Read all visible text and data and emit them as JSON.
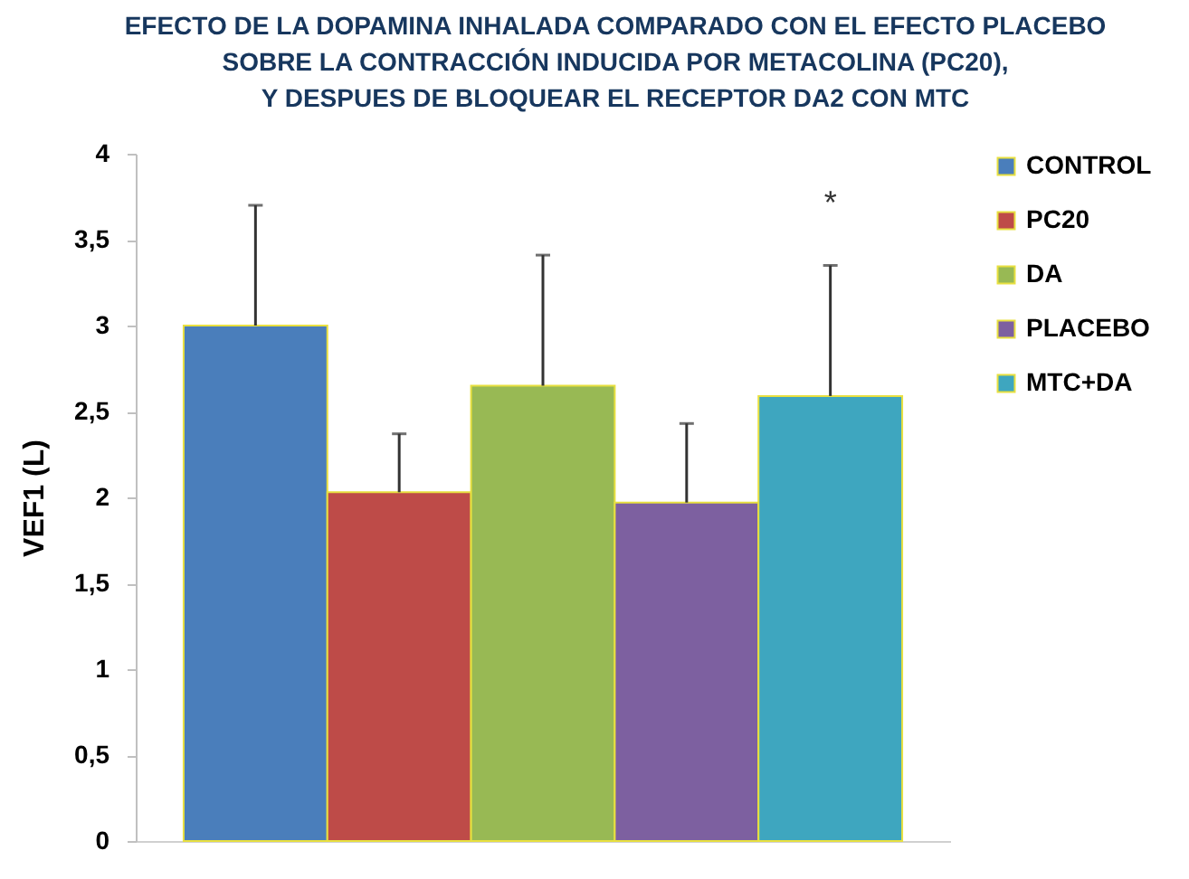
{
  "chart_data": {
    "type": "bar",
    "title": "EFECTO  DE LA DOPAMINA INHALADA COMPARADO CON EL EFECTO  PLACEBO\nSOBRE LA CONTRACCIÓN INDUCIDA POR METACOLINA  (PC20),\nY  DESPUES DE BLOQUEAR EL RECEPTOR DA2 CON MTC",
    "ylabel": "VEF1 (L)",
    "categories": [
      null
    ],
    "series": [
      {
        "name": "CONTROL",
        "color": "#4a7ebb",
        "values": [
          3.0
        ],
        "errors": [
          [
            3.0,
            3.7
          ]
        ]
      },
      {
        "name": "PC20",
        "color": "#be4b48",
        "values": [
          2.03
        ],
        "errors": [
          [
            2.03,
            2.37
          ]
        ]
      },
      {
        "name": "DA",
        "color": "#98b954",
        "values": [
          2.65
        ],
        "errors": [
          [
            2.65,
            3.41
          ]
        ]
      },
      {
        "name": "PLACEBO",
        "color": "#7d60a0",
        "values": [
          1.97
        ],
        "errors": [
          [
            1.97,
            2.43
          ]
        ]
      },
      {
        "name": "MTC+DA",
        "color": "#3ea6bf",
        "values": [
          2.59
        ],
        "errors": [
          [
            2.59,
            3.35
          ]
        ]
      }
    ],
    "annotations": [
      "*"
    ],
    "ylim": [
      0,
      4
    ],
    "yticks": [
      0,
      {
        "value": 0.5,
        "label": "0,5"
      },
      1,
      {
        "value": 1.5,
        "label": "1,5"
      },
      2,
      {
        "value": 2.5,
        "label": "2,5"
      },
      3,
      {
        "value": 3.5,
        "label": "3,5"
      },
      4
    ],
    "grid": false,
    "legend": "top right",
    "tick_labels": "y"
  }
}
